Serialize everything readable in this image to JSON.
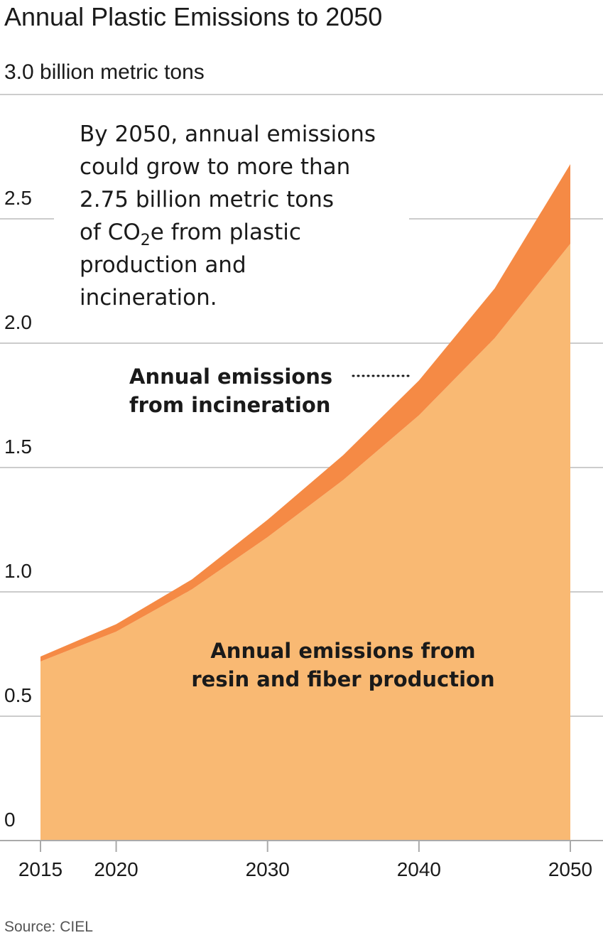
{
  "chart_data": {
    "type": "area",
    "title": "Annual Plastic Emissions to 2050",
    "ylabel": "3.0 billion metric tons",
    "source": "Source: CIEL",
    "ylim": [
      0,
      3.0
    ],
    "xlim": [
      2015,
      2050
    ],
    "x_ticks": [
      2015,
      2020,
      2030,
      2040,
      2050
    ],
    "x_tick_labels": [
      "2015",
      "2020",
      "2030",
      "2040",
      "2050"
    ],
    "y_ticks": [
      0,
      0.5,
      1.0,
      1.5,
      2.0,
      2.5,
      3.0
    ],
    "y_tick_labels": [
      "0",
      "0.5",
      "1.0",
      "1.5",
      "2.0",
      "2.5"
    ],
    "stacked": true,
    "grid": true,
    "x": [
      2015,
      2020,
      2025,
      2030,
      2035,
      2040,
      2045,
      2050
    ],
    "series": [
      {
        "name": "Annual emissions from resin and fiber production",
        "color": "#f9b973",
        "values": [
          0.72,
          0.84,
          1.01,
          1.22,
          1.45,
          1.71,
          2.02,
          2.4
        ]
      },
      {
        "name": "Annual emissions from incineration",
        "color": "#f58a45",
        "values": [
          0.02,
          0.03,
          0.04,
          0.07,
          0.1,
          0.14,
          0.2,
          0.32
        ]
      }
    ],
    "annotations": {
      "callout_lines": [
        "By 2050, annual emissions",
        "could grow to more than",
        "2.75 billion metric tons",
        "of CO",
        "2",
        "e from plastic",
        "production and",
        "incineration."
      ],
      "incineration_label": [
        "Annual emissions",
        "from incineration"
      ],
      "production_label": [
        "Annual emissions from",
        "resin and fiber production"
      ]
    }
  }
}
